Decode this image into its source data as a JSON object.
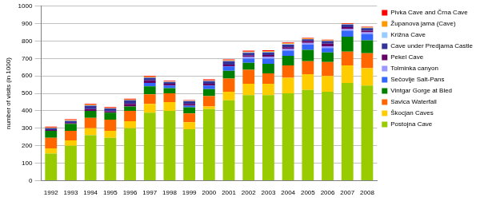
{
  "chart_data": {
    "type": "bar",
    "stacked": true,
    "grid": true,
    "legend": "right",
    "y_label": "number of visits (in 1000)",
    "categories": [
      "1992",
      "1993",
      "1994",
      "1995",
      "1996",
      "1997",
      "1998",
      "1999",
      "2000",
      "2001",
      "2002",
      "2003",
      "2004",
      "2005",
      "2006",
      "2007",
      "2008"
    ],
    "ylim": [
      0,
      1000
    ],
    "yticks": [
      0,
      100,
      200,
      300,
      400,
      500,
      600,
      700,
      800,
      900,
      1000
    ],
    "series": [
      {
        "name": "Postojna Cave",
        "color": "#99cc00",
        "values": [
          155,
          200,
          260,
          245,
          300,
          390,
          400,
          295,
          410,
          460,
          490,
          490,
          500,
          520,
          510,
          560,
          545
        ]
      },
      {
        "name": "Škocjan Caves",
        "color": "#ffcc00",
        "values": [
          30,
          30,
          40,
          40,
          40,
          50,
          50,
          40,
          15,
          50,
          65,
          65,
          90,
          90,
          90,
          100,
          100
        ]
      },
      {
        "name": "Savica Waterfall",
        "color": "#ff6600",
        "values": [
          60,
          55,
          60,
          65,
          60,
          55,
          50,
          50,
          60,
          75,
          80,
          60,
          70,
          75,
          80,
          80,
          85
        ]
      },
      {
        "name": "Vintgar Gorge at Bled",
        "color": "#008000",
        "values": [
          40,
          40,
          40,
          40,
          25,
          45,
          30,
          35,
          40,
          45,
          40,
          55,
          55,
          65,
          55,
          85,
          75
        ]
      },
      {
        "name": "Sečovlje Salt-Pans",
        "color": "#3366ff",
        "values": [
          0,
          0,
          0,
          0,
          0,
          20,
          15,
          10,
          20,
          25,
          25,
          30,
          30,
          30,
          25,
          35,
          35
        ]
      },
      {
        "name": "Tolminka canyon",
        "color": "#9999ff",
        "values": [
          0,
          0,
          0,
          0,
          0,
          0,
          0,
          0,
          0,
          0,
          10,
          10,
          10,
          10,
          10,
          10,
          10
        ]
      },
      {
        "name": "Pekel Cave",
        "color": "#660066",
        "values": [
          5,
          5,
          10,
          8,
          15,
          15,
          10,
          10,
          10,
          10,
          8,
          10,
          10,
          10,
          15,
          10,
          10
        ]
      },
      {
        "name": "Cave under Predjama Castle",
        "color": "#333399",
        "values": [
          10,
          12,
          20,
          15,
          20,
          15,
          10,
          15,
          15,
          20,
          15,
          15,
          15,
          10,
          15,
          15,
          15
        ]
      },
      {
        "name": "Križna Cave",
        "color": "#99ccff",
        "values": [
          2,
          2,
          2,
          2,
          2,
          2,
          2,
          2,
          2,
          2,
          3,
          3,
          3,
          2,
          2,
          2,
          2
        ]
      },
      {
        "name": "Županova jama (Cave)",
        "color": "#ff9900",
        "values": [
          3,
          3,
          3,
          2,
          3,
          3,
          2,
          2,
          3,
          3,
          4,
          4,
          4,
          3,
          3,
          3,
          3
        ]
      },
      {
        "name": "Pivka Cave and Črna Cave",
        "color": "#ff0000",
        "values": [
          5,
          5,
          5,
          4,
          5,
          5,
          3,
          3,
          5,
          5,
          5,
          5,
          5,
          3,
          3,
          3,
          3
        ]
      }
    ]
  }
}
